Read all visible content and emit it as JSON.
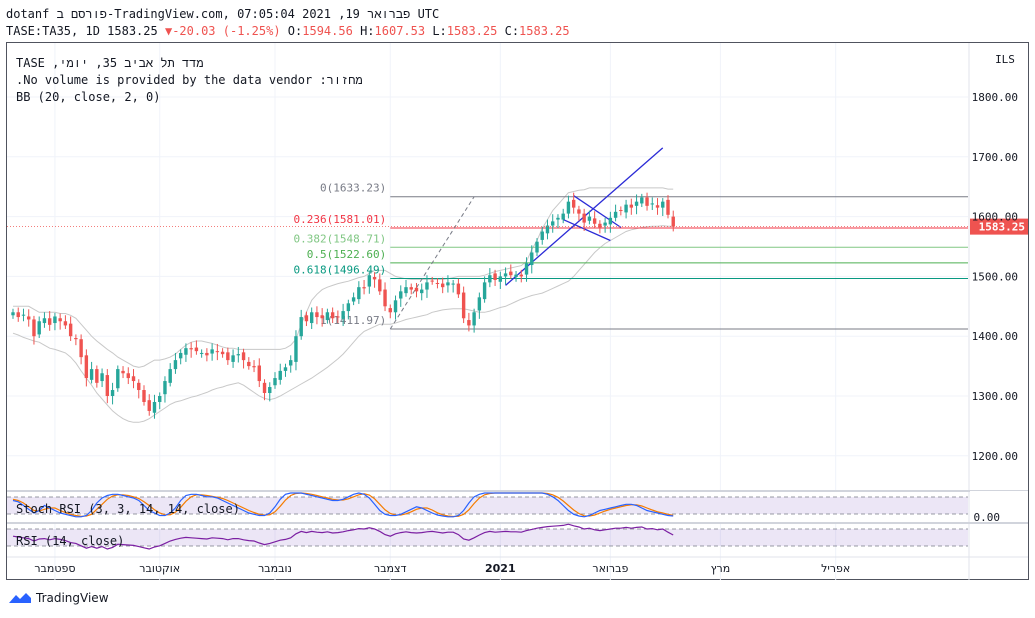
{
  "header": {
    "line1": "dotanf פורסם ב-TradingView.com, פברואר 19, 2021 07:05:04 UTC",
    "line2_prefix": "TASE:TA35, 1D 1583.25",
    "change_arrow": "▼",
    "change": "-20.03 (-1.25%)",
    "o_label": "O:",
    "o_value": "1594.56",
    "h_label": "H:",
    "h_value": "1607.53",
    "l_label": "L:",
    "l_value": "1583.25",
    "c_label": "C:",
    "c_value": "1583.25"
  },
  "legend": {
    "line1": "מדד תל אביב 35, יומי, TASE",
    "line2": "מחזור: No volume is provided by the data vendor.",
    "line3": "BB (20, close, 2, 0)"
  },
  "indicators": {
    "stoch_label": "Stoch RSI (3, 3, 14, 14, close)",
    "stoch_axis": "0.00",
    "rsi_label": "RSI (14, close)"
  },
  "brand": "TradingView",
  "colors": {
    "up": "#26a69a",
    "down": "#ef5350",
    "bb": "#c8c8c8",
    "fib0": "#787b86",
    "fib236": "#f23645",
    "fib382": "#81c784",
    "fib5": "#4caf50",
    "fib618": "#089981",
    "channel": "#2b2bd6",
    "stoch_k": "#2962ff",
    "stoch_d": "#f57c00",
    "rsi": "#7b1fa2",
    "price_tag": "#ef5350"
  },
  "chart_data": {
    "type": "candlestick",
    "title": "TASE:TA35, 1D",
    "currency_label": "ILS",
    "ylim": [
      1150,
      1860
    ],
    "yticks": [
      1200,
      1300,
      1400,
      1500,
      1600,
      1700,
      1800
    ],
    "ytick_labels": [
      "1200.00",
      "1300.00",
      "1400.00",
      "1500.00",
      "1600.00",
      "1700.00",
      "1800.00"
    ],
    "current_price_label": "1583.25",
    "current_price": 1583.25,
    "x_labels": [
      {
        "text": "ספטמבר",
        "bar": 8,
        "bold": false
      },
      {
        "text": "אוקטובר",
        "bar": 28,
        "bold": false
      },
      {
        "text": "נובמבר",
        "bar": 50,
        "bold": false
      },
      {
        "text": "דצמבר",
        "bar": 72,
        "bold": false
      },
      {
        "text": "2021",
        "bar": 93,
        "bold": true
      },
      {
        "text": "פברואר",
        "bar": 114,
        "bold": false
      },
      {
        "text": "מרץ",
        "bar": 135,
        "bold": false
      },
      {
        "text": "אפריל",
        "bar": 157,
        "bold": false
      }
    ],
    "bars_total": 171,
    "fib_levels": [
      {
        "label": "0(1633.23)",
        "value": 1633.23,
        "color_key": "fib0"
      },
      {
        "label": "0.236(1581.01)",
        "value": 1581.01,
        "color_key": "fib236"
      },
      {
        "label": "0.382(1548.71)",
        "value": 1548.71,
        "color_key": "fib382"
      },
      {
        "label": "0.5(1522.60)",
        "value": 1522.6,
        "color_key": "fib5"
      },
      {
        "label": "0.618(1496.49)",
        "value": 1496.49,
        "color_key": "fib618"
      },
      {
        "label": "1(1411.97)",
        "value": 1411.97,
        "color_key": "fib0"
      }
    ],
    "fib_start_bar": 72,
    "trend_line": {
      "from": [
        72,
        1411.97
      ],
      "to": [
        88,
        1633.23
      ]
    },
    "channel_lines": [
      {
        "from": [
          94,
          1485
        ],
        "to": [
          124,
          1715
        ]
      },
      {
        "from": [
          105,
          1595
        ],
        "to": [
          114,
          1560
        ]
      },
      {
        "from": [
          107,
          1635
        ],
        "to": [
          116,
          1582
        ]
      }
    ],
    "closes": [
      1440,
      1432,
      1436,
      1428,
      1400,
      1425,
      1430,
      1419,
      1433,
      1425,
      1418,
      1400,
      1395,
      1365,
      1330,
      1345,
      1322,
      1338,
      1300,
      1310,
      1345,
      1338,
      1330,
      1325,
      1310,
      1290,
      1275,
      1290,
      1300,
      1325,
      1345,
      1360,
      1372,
      1380,
      1378,
      1375,
      1372,
      1368,
      1378,
      1374,
      1370,
      1360,
      1368,
      1370,
      1360,
      1350,
      1348,
      1325,
      1305,
      1315,
      1330,
      1342,
      1348,
      1360,
      1400,
      1432,
      1425,
      1440,
      1432,
      1430,
      1440,
      1430,
      1432,
      1442,
      1455,
      1465,
      1482,
      1480,
      1502,
      1495,
      1475,
      1450,
      1440,
      1460,
      1475,
      1482,
      1478,
      1475,
      1478,
      1490,
      1492,
      1488,
      1482,
      1490,
      1488,
      1470,
      1430,
      1418,
      1440,
      1465,
      1490,
      1502,
      1494,
      1500,
      1505,
      1502,
      1503,
      1500,
      1522,
      1540,
      1558,
      1575,
      1585,
      1592,
      1598,
      1605,
      1625,
      1615,
      1605,
      1590,
      1600,
      1588,
      1582,
      1590,
      1598,
      1608,
      1610,
      1620,
      1615,
      1625,
      1632,
      1618,
      1622,
      1615,
      1625,
      1603,
      1583.25
    ],
    "bb_upper": [
      1450,
      1450,
      1450,
      1450,
      1445,
      1440,
      1440,
      1440,
      1440,
      1438,
      1438,
      1435,
      1430,
      1420,
      1410,
      1400,
      1392,
      1385,
      1378,
      1372,
      1365,
      1360,
      1355,
      1350,
      1348,
      1350,
      1355,
      1360,
      1360,
      1362,
      1365,
      1370,
      1378,
      1385,
      1390,
      1392,
      1392,
      1390,
      1388,
      1385,
      1382,
      1380,
      1380,
      1378,
      1378,
      1378,
      1378,
      1378,
      1378,
      1378,
      1378,
      1378,
      1380,
      1385,
      1395,
      1420,
      1440,
      1460,
      1470,
      1478,
      1482,
      1485,
      1488,
      1490,
      1492,
      1495,
      1498,
      1500,
      1505,
      1510,
      1510,
      1510,
      1505,
      1500,
      1498,
      1496,
      1495,
      1495,
      1495,
      1495,
      1495,
      1495,
      1495,
      1496,
      1498,
      1500,
      1500,
      1500,
      1500,
      1500,
      1502,
      1505,
      1508,
      1510,
      1512,
      1514,
      1516,
      1518,
      1525,
      1545,
      1560,
      1580,
      1595,
      1610,
      1620,
      1630,
      1640,
      1642,
      1644,
      1645,
      1648,
      1648,
      1648,
      1648,
      1648,
      1648,
      1648,
      1648,
      1648,
      1648,
      1648,
      1648,
      1648,
      1648,
      1648,
      1646,
      1646
    ],
    "bb_lower": [
      1405,
      1402,
      1398,
      1395,
      1392,
      1390,
      1385,
      1380,
      1378,
      1375,
      1372,
      1365,
      1355,
      1342,
      1330,
      1318,
      1305,
      1295,
      1285,
      1275,
      1268,
      1262,
      1258,
      1256,
      1256,
      1258,
      1262,
      1268,
      1274,
      1280,
      1286,
      1290,
      1292,
      1295,
      1298,
      1300,
      1303,
      1306,
      1310,
      1313,
      1315,
      1318,
      1320,
      1322,
      1318,
      1312,
      1306,
      1300,
      1296,
      1294,
      1296,
      1300,
      1305,
      1310,
      1315,
      1320,
      1325,
      1330,
      1336,
      1342,
      1348,
      1355,
      1362,
      1370,
      1380,
      1390,
      1400,
      1408,
      1412,
      1416,
      1420,
      1420,
      1420,
      1422,
      1425,
      1428,
      1430,
      1432,
      1434,
      1436,
      1440,
      1442,
      1444,
      1445,
      1446,
      1446,
      1446,
      1444,
      1442,
      1440,
      1440,
      1442,
      1445,
      1448,
      1450,
      1454,
      1458,
      1462,
      1465,
      1468,
      1470,
      1472,
      1476,
      1480,
      1484,
      1488,
      1492,
      1500,
      1510,
      1520,
      1530,
      1540,
      1548,
      1555,
      1560,
      1565,
      1570,
      1575,
      1578,
      1580,
      1582,
      1583,
      1584,
      1584,
      1585,
      1584,
      1584
    ],
    "stoch_k": [
      70,
      65,
      50,
      35,
      20,
      30,
      50,
      40,
      30,
      20,
      15,
      10,
      5,
      5,
      10,
      30,
      60,
      80,
      90,
      95,
      95,
      90,
      85,
      80,
      70,
      50,
      30,
      20,
      10,
      10,
      20,
      40,
      70,
      90,
      95,
      95,
      90,
      85,
      85,
      80,
      70,
      60,
      50,
      40,
      30,
      20,
      15,
      10,
      10,
      20,
      45,
      75,
      95,
      100,
      100,
      100,
      95,
      90,
      85,
      80,
      75,
      70,
      70,
      75,
      85,
      95,
      100,
      95,
      80,
      55,
      30,
      15,
      10,
      10,
      15,
      25,
      35,
      45,
      40,
      30,
      20,
      12,
      8,
      5,
      5,
      10,
      30,
      60,
      85,
      95,
      100,
      100,
      100,
      100,
      100,
      100,
      100,
      100,
      100,
      100,
      100,
      100,
      95,
      85,
      70,
      50,
      30,
      15,
      8,
      5,
      10,
      20,
      30,
      35,
      40,
      45,
      50,
      55,
      55,
      50,
      40,
      30,
      25,
      20,
      15,
      10,
      8
    ],
    "stoch_d": [
      75,
      70,
      60,
      45,
      30,
      28,
      35,
      40,
      40,
      30,
      22,
      15,
      10,
      7,
      8,
      15,
      35,
      55,
      75,
      88,
      93,
      93,
      90,
      85,
      78,
      65,
      50,
      33,
      20,
      13,
      13,
      23,
      43,
      67,
      85,
      93,
      93,
      90,
      87,
      83,
      78,
      70,
      60,
      50,
      40,
      30,
      22,
      15,
      12,
      13,
      25,
      47,
      72,
      90,
      98,
      100,
      98,
      95,
      90,
      85,
      80,
      75,
      72,
      72,
      77,
      85,
      93,
      97,
      92,
      77,
      55,
      33,
      18,
      12,
      12,
      17,
      25,
      35,
      40,
      40,
      32,
      21,
      13,
      8,
      6,
      7,
      15,
      33,
      58,
      80,
      93,
      98,
      100,
      100,
      100,
      100,
      100,
      100,
      100,
      100,
      100,
      100,
      98,
      93,
      83,
      68,
      50,
      32,
      18,
      9,
      8,
      12,
      20,
      28,
      35,
      40,
      45,
      50,
      53,
      53,
      48,
      40,
      32,
      25,
      20,
      15,
      11
    ],
    "rsi": [
      52,
      50,
      48,
      46,
      40,
      45,
      46,
      43,
      46,
      44,
      41,
      36,
      34,
      28,
      22,
      26,
      22,
      26,
      20,
      24,
      32,
      31,
      30,
      29,
      26,
      23,
      20,
      25,
      28,
      34,
      40,
      44,
      47,
      49,
      48,
      47,
      46,
      45,
      48,
      47,
      46,
      43,
      46,
      46,
      43,
      41,
      40,
      35,
      31,
      34,
      38,
      42,
      44,
      48,
      58,
      64,
      61,
      64,
      62,
      61,
      63,
      60,
      61,
      63,
      66,
      68,
      71,
      70,
      73,
      70,
      64,
      56,
      52,
      58,
      61,
      63,
      61,
      60,
      61,
      63,
      64,
      62,
      60,
      62,
      62,
      56,
      45,
      42,
      48,
      55,
      61,
      64,
      62,
      63,
      64,
      63,
      63,
      62,
      66,
      69,
      72,
      74,
      76,
      77,
      78,
      79,
      82,
      78,
      75,
      70,
      72,
      68,
      66,
      68,
      70,
      72,
      72,
      74,
      72,
      74,
      75,
      70,
      71,
      68,
      70,
      62,
      55
    ]
  }
}
